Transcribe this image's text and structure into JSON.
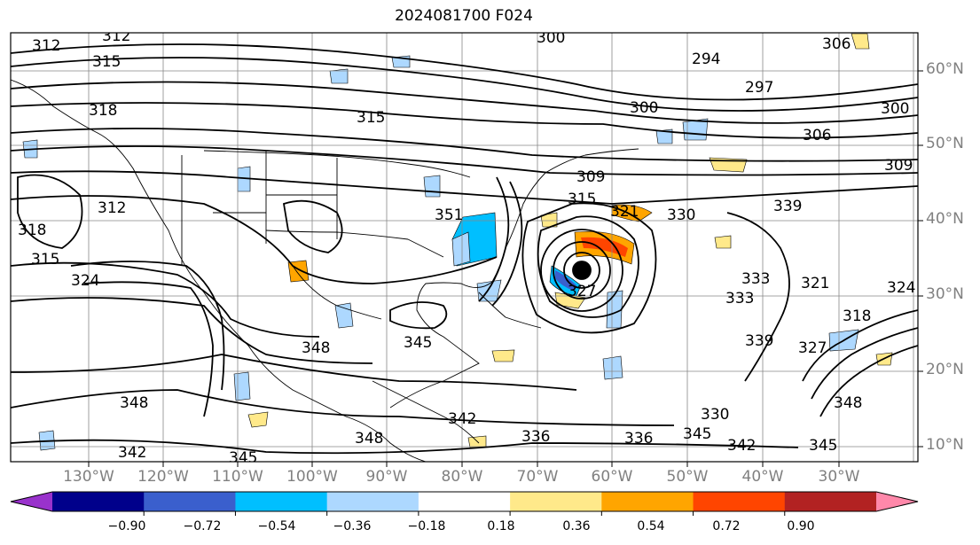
{
  "title": "2024081700 F024",
  "latitude_labels": [
    "60°N",
    "50°N",
    "40°N",
    "30°N",
    "20°N",
    "10°N"
  ],
  "longitude_labels": [
    "130°W",
    "120°W",
    "110°W",
    "100°W",
    "90°W",
    "80°W",
    "70°W",
    "60°W",
    "50°W",
    "40°W",
    "30°W"
  ],
  "colorbar": {
    "ticks": [
      "−0.90",
      "−0.72",
      "−0.54",
      "−0.36",
      "−0.18",
      "0.18",
      "0.36",
      "0.54",
      "0.72",
      "0.90"
    ],
    "colors": [
      "#9932cc",
      "#00008b",
      "#3a5fcd",
      "#00bfff",
      "#add8ff",
      "#ffffff",
      "#ffe98a",
      "#ffa500",
      "#ff4500",
      "#b22222",
      "#ff88aa"
    ]
  },
  "contour_labels": [
    "312",
    "315",
    "312",
    "300",
    "306",
    "294",
    "300",
    "297",
    "300",
    "306",
    "309",
    "309",
    "315",
    "315",
    "318",
    "318",
    "312",
    "315",
    "321",
    "324",
    "327",
    "330",
    "333",
    "339",
    "342",
    "345",
    "348",
    "348",
    "345",
    "342",
    "336",
    "330",
    "345",
    "342",
    "345",
    "348",
    "336",
    "339",
    "333",
    "321",
    "327",
    "324",
    "318",
    "348",
    "351"
  ]
}
